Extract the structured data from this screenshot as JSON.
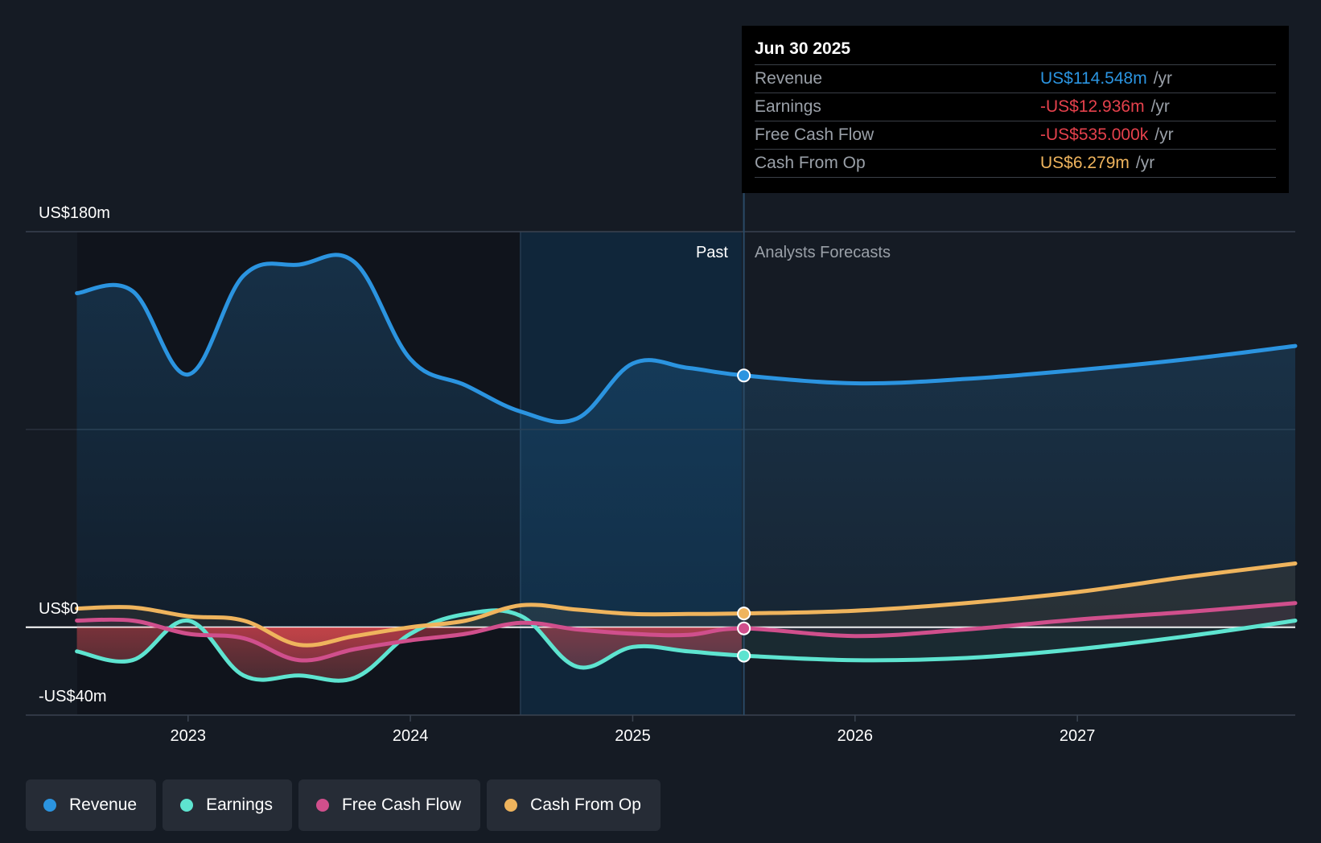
{
  "chart_data": {
    "type": "line",
    "y_axis": {
      "top_label": "US$180m",
      "zero_label": "US$0",
      "bottom_label": "-US$40m",
      "ylim": [
        -40,
        180
      ],
      "unit": "US$m"
    },
    "x_axis": {
      "tick_labels": [
        "2023",
        "2024",
        "2025",
        "2026",
        "2027"
      ],
      "ticks": [
        2023.0,
        2024.0,
        2025.0,
        2026.0,
        2027.0
      ],
      "xlim": [
        2022.27,
        2027.98
      ]
    },
    "regions": {
      "past_label": "Past",
      "forecast_label": "Analysts Forecasts",
      "divider": 2025.5,
      "shaded_start": 2024.5
    },
    "series": [
      {
        "name": "Revenue",
        "color": "#2b94e0",
        "points": [
          [
            2022.5,
            152
          ],
          [
            2022.75,
            153
          ],
          [
            2023.0,
            115
          ],
          [
            2023.25,
            160
          ],
          [
            2023.5,
            165
          ],
          [
            2023.75,
            166
          ],
          [
            2024.0,
            122
          ],
          [
            2024.25,
            110
          ],
          [
            2024.5,
            98
          ],
          [
            2024.75,
            95
          ],
          [
            2025.0,
            120
          ],
          [
            2025.25,
            118
          ],
          [
            2025.5,
            114.548
          ],
          [
            2026.0,
            111
          ],
          [
            2026.5,
            113
          ],
          [
            2027.0,
            117
          ],
          [
            2027.5,
            122
          ],
          [
            2027.98,
            128
          ]
        ]
      },
      {
        "name": "Earnings",
        "color": "#5ee4d0",
        "points": [
          [
            2022.5,
            -11
          ],
          [
            2022.75,
            -15
          ],
          [
            2023.0,
            3
          ],
          [
            2023.25,
            -22
          ],
          [
            2023.5,
            -22
          ],
          [
            2023.75,
            -23
          ],
          [
            2024.0,
            -3
          ],
          [
            2024.25,
            6
          ],
          [
            2024.5,
            5
          ],
          [
            2024.75,
            -18
          ],
          [
            2025.0,
            -9
          ],
          [
            2025.25,
            -11
          ],
          [
            2025.5,
            -12.936
          ],
          [
            2026.0,
            -15
          ],
          [
            2026.5,
            -14
          ],
          [
            2027.0,
            -10
          ],
          [
            2027.5,
            -4
          ],
          [
            2027.98,
            3
          ]
        ]
      },
      {
        "name": "Free Cash Flow",
        "color": "#d04f8c",
        "points": [
          [
            2022.5,
            3
          ],
          [
            2022.75,
            3
          ],
          [
            2023.0,
            -3
          ],
          [
            2023.25,
            -5
          ],
          [
            2023.5,
            -15
          ],
          [
            2023.75,
            -10
          ],
          [
            2024.0,
            -6
          ],
          [
            2024.25,
            -3
          ],
          [
            2024.5,
            2
          ],
          [
            2024.75,
            -1
          ],
          [
            2025.0,
            -3
          ],
          [
            2025.25,
            -3.5
          ],
          [
            2025.5,
            -0.535
          ],
          [
            2026.0,
            -4
          ],
          [
            2026.5,
            -1
          ],
          [
            2027.0,
            3.5
          ],
          [
            2027.5,
            7
          ],
          [
            2027.98,
            11
          ]
        ]
      },
      {
        "name": "Cash From Op",
        "color": "#efb45d",
        "points": [
          [
            2022.5,
            8.5
          ],
          [
            2022.75,
            9
          ],
          [
            2023.0,
            5
          ],
          [
            2023.25,
            3
          ],
          [
            2023.5,
            -8
          ],
          [
            2023.75,
            -4
          ],
          [
            2024.0,
            0
          ],
          [
            2024.25,
            3
          ],
          [
            2024.5,
            10
          ],
          [
            2024.75,
            8
          ],
          [
            2025.0,
            6
          ],
          [
            2025.25,
            6
          ],
          [
            2025.5,
            6.279
          ],
          [
            2026.0,
            7.5
          ],
          [
            2026.5,
            11
          ],
          [
            2027.0,
            16
          ],
          [
            2027.5,
            23
          ],
          [
            2027.98,
            29
          ]
        ]
      }
    ],
    "legend_position": "bottom-left",
    "grid": "horizontal"
  },
  "tooltip": {
    "date": "Jun 30 2025",
    "rows": [
      {
        "name": "Revenue",
        "value": "US$114.548m",
        "unit": "/yr",
        "color": "#2b94e0"
      },
      {
        "name": "Earnings",
        "value": "-US$12.936m",
        "unit": "/yr",
        "color": "#e5414c"
      },
      {
        "name": "Free Cash Flow",
        "value": "-US$535.000k",
        "unit": "/yr",
        "color": "#e5414c"
      },
      {
        "name": "Cash From Op",
        "value": "US$6.279m",
        "unit": "/yr",
        "color": "#efb45d"
      }
    ]
  },
  "legend": [
    {
      "label": "Revenue",
      "color": "#2b94e0"
    },
    {
      "label": "Earnings",
      "color": "#5ee4d0"
    },
    {
      "label": "Free Cash Flow",
      "color": "#d04f8c"
    },
    {
      "label": "Cash From Op",
      "color": "#efb45d"
    }
  ]
}
